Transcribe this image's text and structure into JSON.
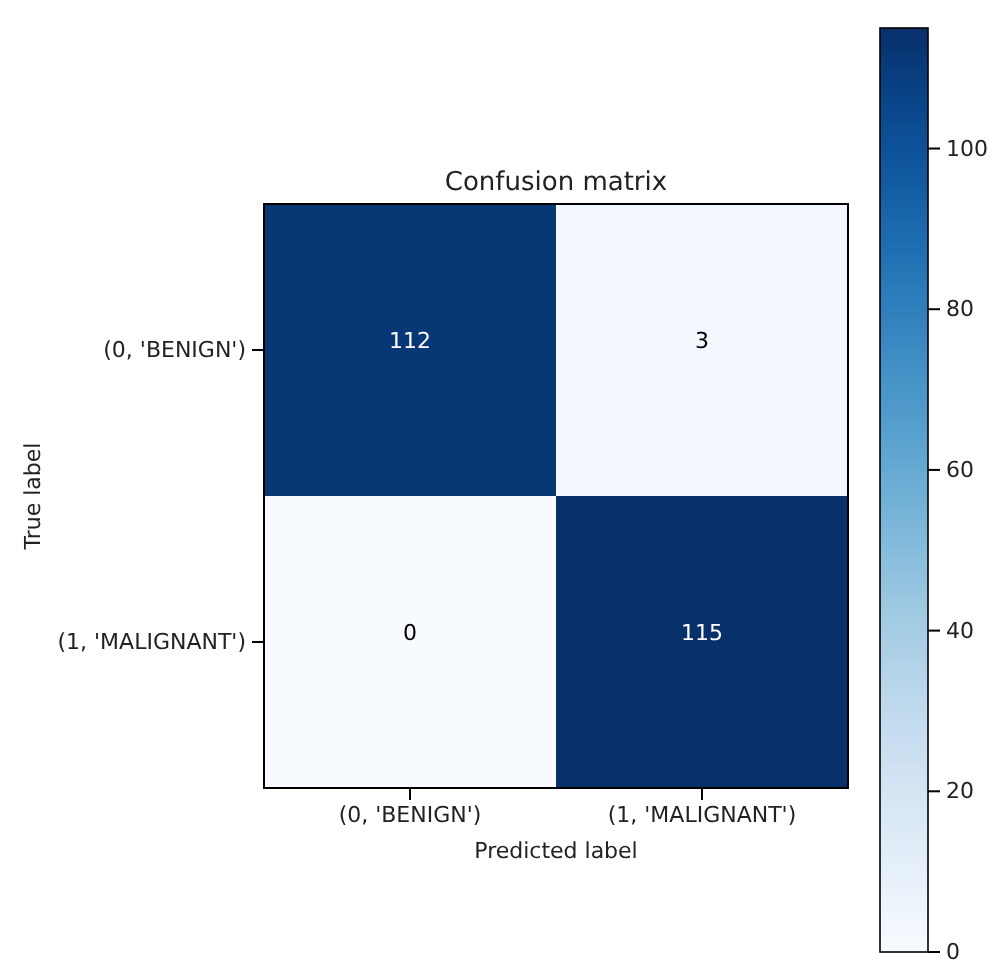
{
  "chart_data": {
    "type": "heatmap",
    "title": "Confusion matrix",
    "xlabel": "Predicted label",
    "ylabel": "True label",
    "categories": [
      "(0, 'BENIGN')",
      "(1, 'MALIGNANT')"
    ],
    "y_categories": [
      "(0, 'BENIGN')",
      "(1, 'MALIGNANT')"
    ],
    "cells": [
      [
        112,
        3
      ],
      [
        0,
        115
      ]
    ],
    "data_labels": true,
    "clim": [
      0,
      115
    ],
    "cticks": [
      0,
      20,
      40,
      60,
      80,
      100
    ]
  }
}
